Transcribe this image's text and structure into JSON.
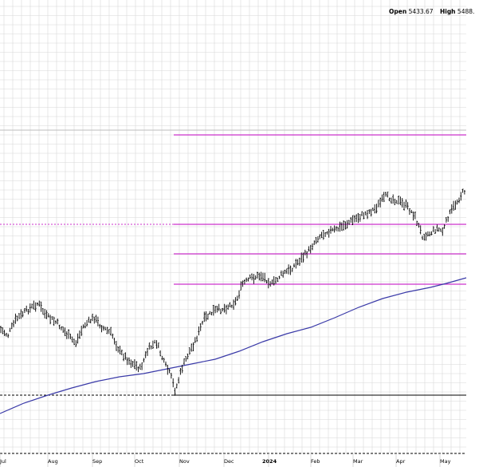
{
  "header": {
    "open_label": "Open",
    "open_value": "5433.67",
    "high_label": "High",
    "high_value": "5488."
  },
  "chart_data": {
    "type": "ohlc-bar",
    "x_labels": [
      "Jul",
      "Aug",
      "Sep",
      "Oct",
      "Nov",
      "Dec",
      "2024",
      "Feb",
      "Mar",
      "Apr",
      "May"
    ],
    "grid": true,
    "colors": {
      "price_bars": "#000000",
      "moving_average": "#3a3aa8",
      "levels": "#cc33cc",
      "grid": "#d8d8d8",
      "support": "#000000"
    }
  }
}
